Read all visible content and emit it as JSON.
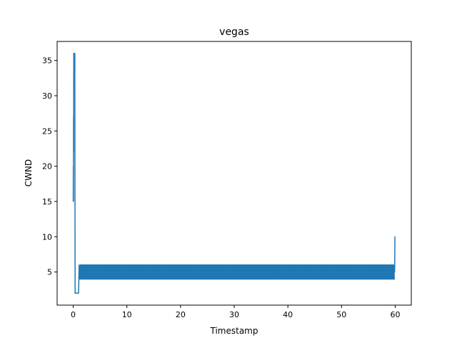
{
  "chart_data": {
    "type": "line",
    "title": "vegas",
    "xlabel": "Timestamp",
    "ylabel": "CWND",
    "xlim": [
      -3.0,
      63.0
    ],
    "ylim": [
      0.3,
      37.7
    ],
    "xticks": [
      0,
      10,
      20,
      30,
      40,
      50,
      60
    ],
    "yticks": [
      5,
      10,
      15,
      20,
      25,
      30,
      35
    ],
    "grid": false,
    "color": "#1f77b4",
    "series": [
      {
        "initial_points": [
          [
            0.0,
            15
          ],
          [
            0.02,
            20
          ],
          [
            0.04,
            15
          ],
          [
            0.06,
            27
          ],
          [
            0.08,
            22
          ],
          [
            0.1,
            36
          ],
          [
            0.2,
            36
          ],
          [
            0.3,
            36
          ],
          [
            0.32,
            20
          ],
          [
            0.35,
            2
          ],
          [
            1.0,
            2
          ],
          [
            1.05,
            4
          ],
          [
            1.1,
            6
          ],
          [
            1.2,
            5
          ]
        ],
        "oscillation": {
          "x_start": 1.2,
          "x_end": 59.8,
          "period": 0.25,
          "values": [
            4,
            6
          ]
        },
        "final_points": [
          [
            59.8,
            5
          ],
          [
            59.9,
            5
          ],
          [
            59.95,
            10
          ],
          [
            60.0,
            10
          ]
        ]
      }
    ]
  }
}
